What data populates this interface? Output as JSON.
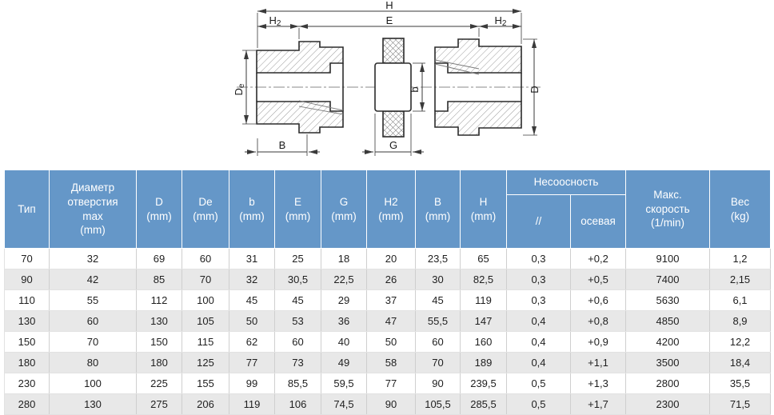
{
  "colors": {
    "header_bg": "#6597c8",
    "row_alt": "#e8e8e8",
    "line": "#3a3a3a",
    "hatch": "#9c9c9c"
  },
  "diagram": {
    "labels": {
      "h": "H",
      "h2_main": "H",
      "h2_sub": "2",
      "e": "E",
      "de_main": "D",
      "de_sub": "e",
      "d": "D",
      "b": "b",
      "b_cap": "B",
      "g": "G"
    }
  },
  "table": {
    "columns": [
      "Тип",
      "Диаметр\nотверстия\nmax\n(mm)",
      "D\n(mm)",
      "De\n(mm)",
      "b\n(mm)",
      "E\n(mm)",
      "G\n(mm)",
      "H2\n(mm)",
      "B\n(mm)",
      "H\n(mm)"
    ],
    "group": {
      "label": "Несоосность",
      "sub": [
        "//",
        "осевая"
      ]
    },
    "tail_columns": [
      "Макс.\nскорость\n(1/min)",
      "Вес\n(kg)"
    ],
    "rows": [
      [
        "70",
        "32",
        "69",
        "60",
        "31",
        "25",
        "18",
        "20",
        "23,5",
        "65",
        "0,3",
        "+0,2",
        "9100",
        "1,2"
      ],
      [
        "90",
        "42",
        "85",
        "70",
        "32",
        "30,5",
        "22,5",
        "26",
        "30",
        "82,5",
        "0,3",
        "+0,5",
        "7400",
        "2,15"
      ],
      [
        "110",
        "55",
        "112",
        "100",
        "45",
        "45",
        "29",
        "37",
        "45",
        "119",
        "0,3",
        "+0,6",
        "5630",
        "6,1"
      ],
      [
        "130",
        "60",
        "130",
        "105",
        "50",
        "53",
        "36",
        "47",
        "55,5",
        "147",
        "0,4",
        "+0,8",
        "4850",
        "8,9"
      ],
      [
        "150",
        "70",
        "150",
        "115",
        "62",
        "60",
        "40",
        "50",
        "60",
        "160",
        "0,4",
        "+0,9",
        "4200",
        "12,2"
      ],
      [
        "180",
        "80",
        "180",
        "125",
        "77",
        "73",
        "49",
        "58",
        "70",
        "189",
        "0,4",
        "+1,1",
        "3500",
        "18,4"
      ],
      [
        "230",
        "100",
        "225",
        "155",
        "99",
        "85,5",
        "59,5",
        "77",
        "90",
        "239,5",
        "0,5",
        "+1,3",
        "2800",
        "35,5"
      ],
      [
        "280",
        "130",
        "275",
        "206",
        "119",
        "106",
        "74,5",
        "90",
        "105,5",
        "285,5",
        "0,5",
        "+1,7",
        "2300",
        "71,5"
      ]
    ]
  }
}
